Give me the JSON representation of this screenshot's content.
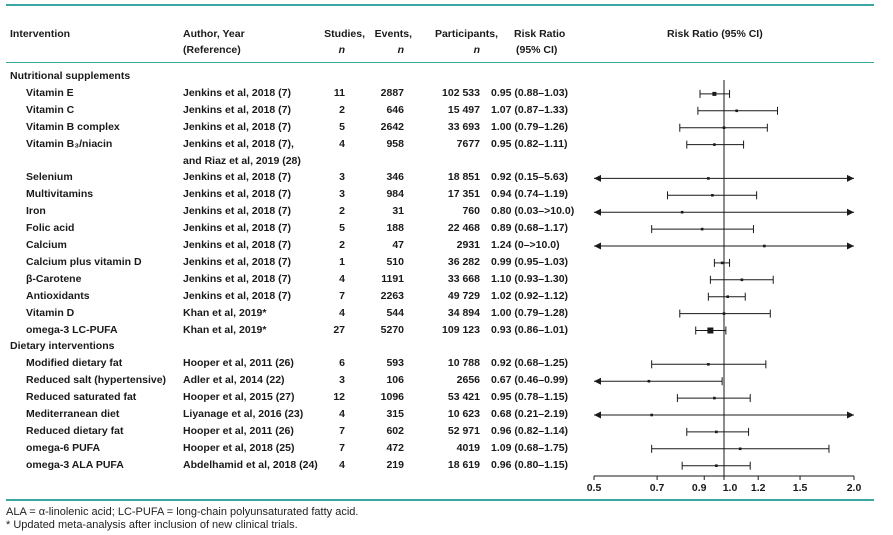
{
  "headers": {
    "intervention": "Intervention",
    "author_1": "Author, Year",
    "author_2": "(Reference)",
    "studies_1": "Studies,",
    "studies_2": "n",
    "events_1": "Events,",
    "events_2": "n",
    "participants_1": "Participants,",
    "participants_2": "n",
    "rr_1": "Risk Ratio",
    "rr_2": "(95% CI)",
    "plot_title": "Risk Ratio (95% CI)"
  },
  "colors": {
    "accent": "#3aa7a3",
    "ink": "#1a1a1a"
  },
  "footnotes": {
    "line1": "ALA = α-linolenic acid; LC-PUFA = long-chain polyunsaturated fatty acid.",
    "line2": "* Updated meta-analysis after inclusion of new clinical trials."
  },
  "chart_data": {
    "type": "forest",
    "xlabel": "",
    "x_ticks": [
      {
        "value": 0.5,
        "label": "0.5"
      },
      {
        "value": 0.7,
        "label": "0.7"
      },
      {
        "value": 0.9,
        "label": "0.9"
      },
      {
        "value": 1.0,
        "label": "1.0"
      },
      {
        "value": 1.2,
        "label": "1.2"
      },
      {
        "value": 1.5,
        "label": "1.5"
      },
      {
        "value": 2.0,
        "label": "2.0"
      }
    ],
    "xlim": [
      0.5,
      2.0
    ],
    "null_line": 1.0,
    "groups": [
      {
        "label": "Nutritional supplements",
        "rows": [
          {
            "intervention": "Vitamin E",
            "author": "Jenkins et al, 2018 (7)",
            "studies": "11",
            "events": "2887",
            "participants": "102 533",
            "rr_text": "0.95 (0.88–1.03)",
            "rr": 0.95,
            "lo": 0.88,
            "hi": 1.03,
            "size": 2
          },
          {
            "intervention": "Vitamin C",
            "author": "Jenkins et al, 2018 (7)",
            "studies": "2",
            "events": "646",
            "participants": "15 497",
            "rr_text": "1.07 (0.87–1.33)",
            "rr": 1.07,
            "lo": 0.87,
            "hi": 1.33,
            "size": 1
          },
          {
            "intervention": "Vitamin B complex",
            "author": "Jenkins et al, 2018 (7)",
            "studies": "5",
            "events": "2642",
            "participants": "33 693",
            "rr_text": "1.00 (0.79–1.26)",
            "rr": 1.0,
            "lo": 0.79,
            "hi": 1.26,
            "size": 1
          },
          {
            "intervention": "Vitamin B₃/niacin",
            "author": "Jenkins et al, 2018 (7),",
            "author2": "and Riaz et al, 2019 (28)",
            "studies": "4",
            "events": "958",
            "participants": "7677",
            "rr_text": "0.95 (0.82–1.11)",
            "rr": 0.95,
            "lo": 0.82,
            "hi": 1.11,
            "size": 1
          },
          {
            "intervention": "Selenium",
            "author": "Jenkins et al, 2018 (7)",
            "studies": "3",
            "events": "346",
            "participants": "18 851",
            "rr_text": "0.92 (0.15–5.63)",
            "rr": 0.92,
            "lo": 0.15,
            "hi": 5.63,
            "size": 1
          },
          {
            "intervention": "Multivitamins",
            "author": "Jenkins et al, 2018 (7)",
            "studies": "3",
            "events": "984",
            "participants": "17 351",
            "rr_text": "0.94 (0.74–1.19)",
            "rr": 0.94,
            "lo": 0.74,
            "hi": 1.19,
            "size": 1
          },
          {
            "intervention": "Iron",
            "author": "Jenkins et al, 2018 (7)",
            "studies": "2",
            "events": "31",
            "participants": "760",
            "rr_text": "0.80 (0.03–>10.0)",
            "rr": 0.8,
            "lo": 0.03,
            "hi": 10.0,
            "size": 1
          },
          {
            "intervention": "Folic acid",
            "author": "Jenkins et al, 2018 (7)",
            "studies": "5",
            "events": "188",
            "participants": "22 468",
            "rr_text": "0.89 (0.68–1.17)",
            "rr": 0.89,
            "lo": 0.68,
            "hi": 1.17,
            "size": 1
          },
          {
            "intervention": "Calcium",
            "author": "Jenkins et al, 2018 (7)",
            "studies": "2",
            "events": "47",
            "participants": "2931",
            "rr_text": "1.24 (0–>10.0)",
            "rr": 1.24,
            "lo": 0.0,
            "hi": 10.0,
            "size": 1
          },
          {
            "intervention": "Calcium plus vitamin D",
            "author": "Jenkins et al, 2018 (7)",
            "studies": "1",
            "events": "510",
            "participants": "36 282",
            "rr_text": "0.99 (0.95–1.03)",
            "rr": 0.99,
            "lo": 0.95,
            "hi": 1.03,
            "size": 1
          },
          {
            "intervention": "β-Carotene",
            "author": "Jenkins et al, 2018 (7)",
            "studies": "4",
            "events": "1191",
            "participants": "33 668",
            "rr_text": "1.10 (0.93–1.30)",
            "rr": 1.1,
            "lo": 0.93,
            "hi": 1.3,
            "size": 1
          },
          {
            "intervention": "Antioxidants",
            "author": "Jenkins et al, 2018 (7)",
            "studies": "7",
            "events": "2263",
            "participants": "49 729",
            "rr_text": "1.02 (0.92–1.12)",
            "rr": 1.02,
            "lo": 0.92,
            "hi": 1.12,
            "size": 1
          },
          {
            "intervention": "Vitamin D",
            "author": "Khan et al, 2019*",
            "studies": "4",
            "events": "544",
            "participants": "34 894",
            "rr_text": "1.00 (0.79–1.28)",
            "rr": 1.0,
            "lo": 0.79,
            "hi": 1.28,
            "size": 1
          },
          {
            "intervention": "omega-3 LC-PUFA",
            "author": "Khan et al, 2019*",
            "studies": "27",
            "events": "5270",
            "participants": "109 123",
            "rr_text": "0.93 (0.86–1.01)",
            "rr": 0.93,
            "lo": 0.86,
            "hi": 1.01,
            "size": 3
          }
        ]
      },
      {
        "label": "Dietary interventions",
        "rows": [
          {
            "intervention": "Modified dietary fat",
            "author": "Hooper et al, 2011 (26)",
            "studies": "6",
            "events": "593",
            "participants": "10 788",
            "rr_text": "0.92 (0.68–1.25)",
            "rr": 0.92,
            "lo": 0.68,
            "hi": 1.25,
            "size": 1
          },
          {
            "intervention": "Reduced salt (hypertensive)",
            "author": "Adler et al, 2014 (22)",
            "studies": "3",
            "events": "106",
            "participants": "2656",
            "rr_text": "0.67 (0.46–0.99)",
            "rr": 0.67,
            "lo": 0.46,
            "hi": 0.99,
            "size": 1
          },
          {
            "intervention": "Reduced saturated fat",
            "author": "Hooper et al, 2015 (27)",
            "studies": "12",
            "events": "1096",
            "participants": "53 421",
            "rr_text": "0.95 (0.78–1.15)",
            "rr": 0.95,
            "lo": 0.78,
            "hi": 1.15,
            "size": 1
          },
          {
            "intervention": "Mediterranean diet",
            "author": "Liyanage et al, 2016 (23)",
            "studies": "4",
            "events": "315",
            "participants": "10 623",
            "rr_text": "0.68 (0.21–2.19)",
            "rr": 0.68,
            "lo": 0.21,
            "hi": 2.19,
            "size": 1
          },
          {
            "intervention": "Reduced dietary fat",
            "author": "Hooper et al, 2011 (26)",
            "studies": "7",
            "events": "602",
            "participants": "52 971",
            "rr_text": "0.96 (0.82–1.14)",
            "rr": 0.96,
            "lo": 0.82,
            "hi": 1.14,
            "size": 1
          },
          {
            "intervention": "omega-6 PUFA",
            "author": "Hooper et al, 2018 (25)",
            "studies": "7",
            "events": "472",
            "participants": "4019",
            "rr_text": "1.09 (0.68–1.75)",
            "rr": 1.09,
            "lo": 0.68,
            "hi": 1.75,
            "size": 1
          },
          {
            "intervention": "omega-3 ALA PUFA",
            "author": "Abdelhamid et al, 2018 (24)",
            "studies": "4",
            "events": "219",
            "participants": "18 619",
            "rr_text": "0.96 (0.80–1.15)",
            "rr": 0.96,
            "lo": 0.8,
            "hi": 1.15,
            "size": 1
          }
        ]
      }
    ]
  }
}
